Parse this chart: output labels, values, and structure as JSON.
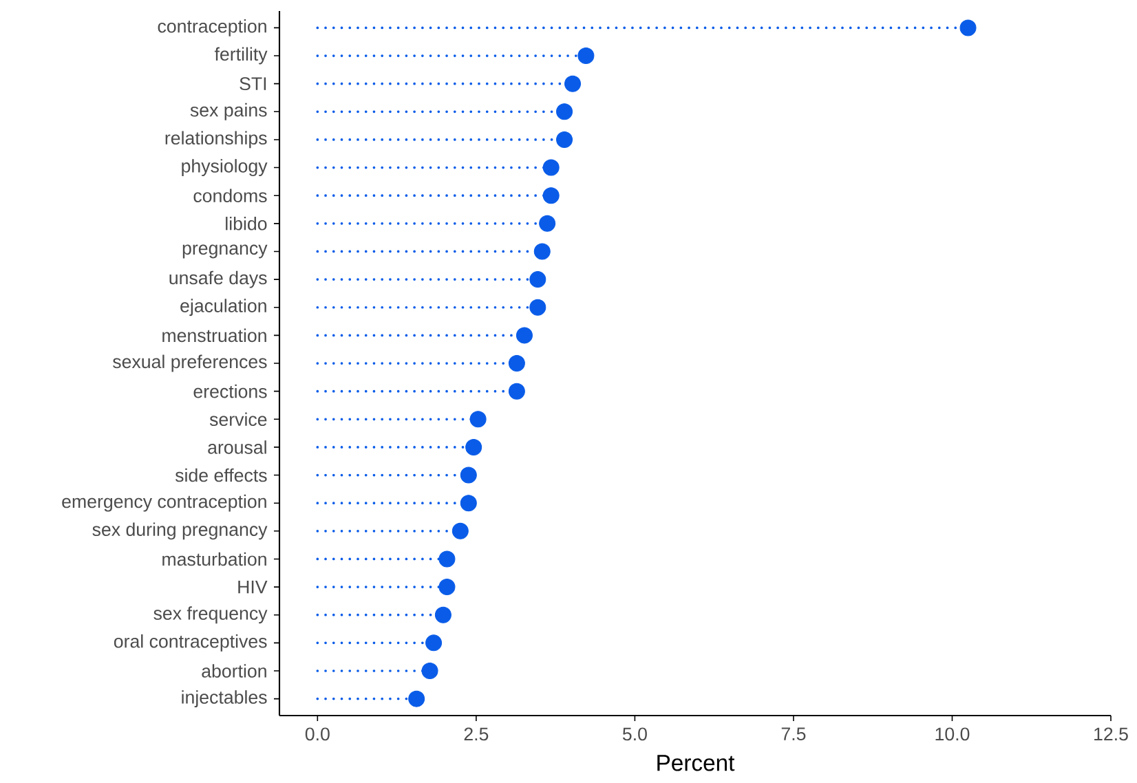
{
  "chart_data": {
    "type": "lollipop",
    "orientation": "horizontal",
    "xlabel": "Percent",
    "categories": [
      "contraception",
      "fertility",
      "STI",
      "sex pains",
      "relationships",
      "physiology",
      "condoms",
      "libido",
      "pregnancy",
      "unsafe days",
      "ejaculation",
      "menstruation",
      "sexual preferences",
      "erections",
      "service",
      "arousal",
      "side effects",
      "emergency contraception",
      "sex during pregnancy",
      "masturbation",
      "HIV",
      "sex frequency",
      "oral contraceptives",
      "abortion",
      "injectables"
    ],
    "values": [
      10.25,
      4.23,
      4.02,
      3.89,
      3.89,
      3.68,
      3.68,
      3.62,
      3.54,
      3.47,
      3.47,
      3.26,
      3.14,
      3.14,
      2.53,
      2.46,
      2.38,
      2.38,
      2.25,
      2.04,
      2.04,
      1.98,
      1.83,
      1.77,
      1.56
    ],
    "color": "#0a5ce8",
    "line_style": "dotted",
    "grid": false,
    "xlim": [
      -0.6,
      12.5
    ],
    "xticks": [
      {
        "value": 0,
        "label": "0.0"
      },
      {
        "value": 2.5,
        "label": "2.5"
      },
      {
        "value": 5,
        "label": "5.0"
      },
      {
        "value": 7.5,
        "label": "7.5"
      },
      {
        "value": 10,
        "label": "10.0"
      },
      {
        "value": 12.5,
        "label": "12.5"
      }
    ]
  }
}
